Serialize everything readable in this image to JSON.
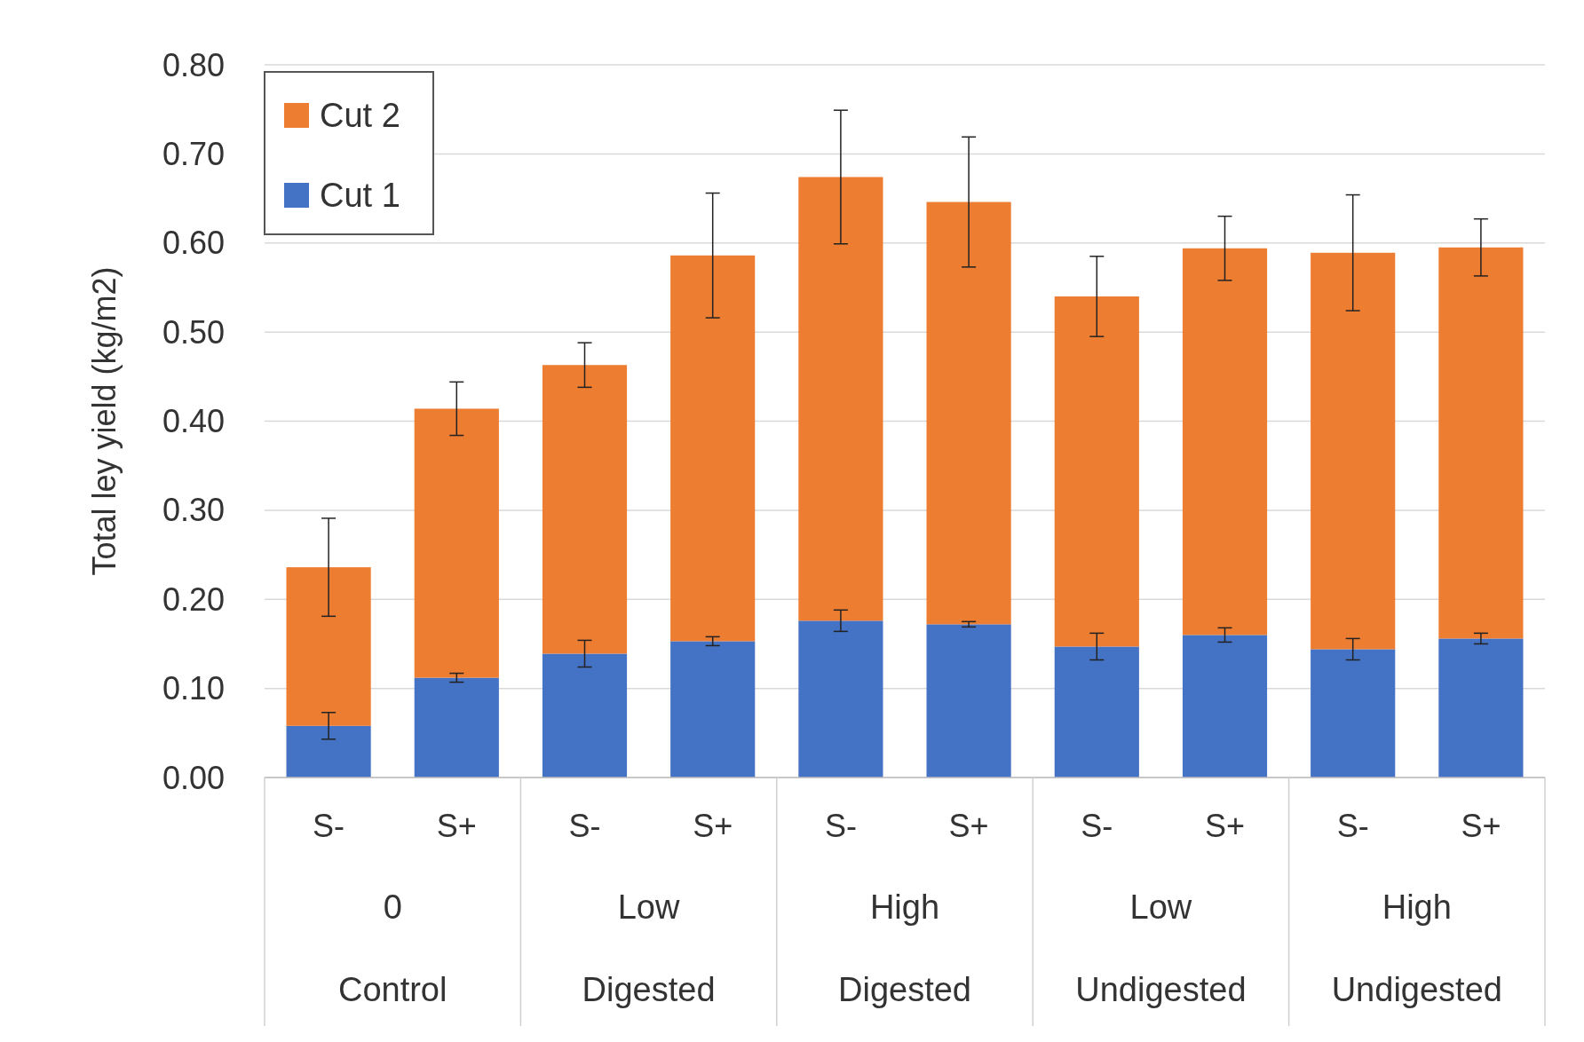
{
  "chart_data": {
    "type": "bar",
    "ylabel": "Total ley yield (kg/m2)",
    "stacked": true,
    "categories": [
      "S-",
      "S+",
      "S-",
      "S+",
      "S-",
      "S+",
      "S-",
      "S+",
      "S-",
      "S+"
    ],
    "series": [
      {
        "name": "Cut 1",
        "color": "#4472c4",
        "values": [
          0.058,
          0.112,
          0.139,
          0.153,
          0.176,
          0.172,
          0.147,
          0.16,
          0.144,
          0.156
        ],
        "errors": [
          0.015,
          0.005,
          0.015,
          0.005,
          0.012,
          0.003,
          0.015,
          0.008,
          0.012,
          0.006
        ]
      },
      {
        "name": "Cut 2",
        "color": "#ed7d31",
        "values": [
          0.178,
          0.302,
          0.324,
          0.433,
          0.498,
          0.474,
          0.393,
          0.434,
          0.445,
          0.439
        ],
        "errors": [
          0.055,
          0.03,
          0.025,
          0.07,
          0.075,
          0.073,
          0.045,
          0.036,
          0.065,
          0.032
        ]
      }
    ],
    "annotations": [
      "0",
      "Control",
      "Low",
      "Digested",
      "High",
      "Digested",
      "Low",
      "Undigested",
      "High",
      "Undigested"
    ],
    "ylim": [
      0,
      0.8
    ],
    "yticks": [
      {
        "value": 0,
        "label": "0.00"
      },
      {
        "value": 0.1,
        "label": "0.10"
      },
      {
        "value": 0.2,
        "label": "0.20"
      },
      {
        "value": 0.3,
        "label": "0.30"
      },
      {
        "value": 0.4,
        "label": "0.40"
      },
      {
        "value": 0.5,
        "label": "0.50"
      },
      {
        "value": 0.6,
        "label": "0.60"
      },
      {
        "value": 0.7,
        "label": "0.70"
      },
      {
        "value": 0.8,
        "label": "0.80"
      }
    ],
    "grid": "y",
    "legend": "top left"
  }
}
